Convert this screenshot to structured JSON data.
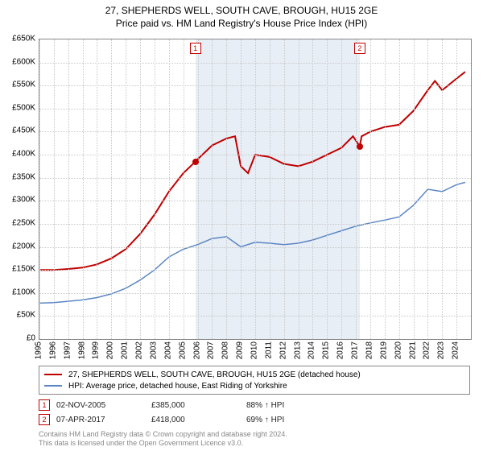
{
  "title": {
    "line1": "27, SHEPHERDS WELL, SOUTH CAVE, BROUGH, HU15 2GE",
    "line2": "Price paid vs. HM Land Registry's House Price Index (HPI)"
  },
  "chart": {
    "background_color": "#ffffff",
    "grid_color": "#c8c8c8",
    "border_color": "#888888",
    "x_years": [
      1995,
      1996,
      1997,
      1998,
      1999,
      2000,
      2001,
      2002,
      2003,
      2004,
      2005,
      2006,
      2007,
      2008,
      2009,
      2010,
      2011,
      2012,
      2013,
      2014,
      2015,
      2016,
      2017,
      2018,
      2019,
      2020,
      2021,
      2022,
      2023,
      2024
    ],
    "x_min": 1995,
    "x_max": 2025,
    "y_min": 0,
    "y_max": 650000,
    "y_step": 50000,
    "y_prefix": "£",
    "y_suffix": "K",
    "shade_start": 2005.84,
    "shade_end": 2017.27,
    "shade_color": "#e8eef6",
    "series": [
      {
        "name": "property",
        "color": "#c00000",
        "width": 2,
        "label": "27, SHEPHERDS WELL, SOUTH CAVE, BROUGH, HU15 2GE (detached house)",
        "points": [
          [
            1995,
            150000
          ],
          [
            1996,
            150000
          ],
          [
            1997,
            152000
          ],
          [
            1998,
            155000
          ],
          [
            1999,
            162000
          ],
          [
            2000,
            175000
          ],
          [
            2001,
            195000
          ],
          [
            2002,
            228000
          ],
          [
            2003,
            270000
          ],
          [
            2004,
            320000
          ],
          [
            2005,
            360000
          ],
          [
            2005.84,
            385000
          ],
          [
            2006,
            390000
          ],
          [
            2007,
            420000
          ],
          [
            2008,
            435000
          ],
          [
            2008.6,
            440000
          ],
          [
            2009,
            375000
          ],
          [
            2009.5,
            360000
          ],
          [
            2010,
            400000
          ],
          [
            2011,
            395000
          ],
          [
            2012,
            380000
          ],
          [
            2013,
            375000
          ],
          [
            2014,
            385000
          ],
          [
            2015,
            400000
          ],
          [
            2016,
            415000
          ],
          [
            2016.8,
            440000
          ],
          [
            2017.27,
            418000
          ],
          [
            2017.4,
            440000
          ],
          [
            2018,
            450000
          ],
          [
            2019,
            460000
          ],
          [
            2020,
            465000
          ],
          [
            2021,
            495000
          ],
          [
            2022,
            540000
          ],
          [
            2022.5,
            560000
          ],
          [
            2023,
            540000
          ],
          [
            2024,
            565000
          ],
          [
            2024.6,
            580000
          ]
        ]
      },
      {
        "name": "hpi",
        "color": "#5b86c4",
        "width": 1.5,
        "label": "HPI: Average price, detached house, East Riding of Yorkshire",
        "points": [
          [
            1995,
            78000
          ],
          [
            1996,
            79000
          ],
          [
            1997,
            82000
          ],
          [
            1998,
            85000
          ],
          [
            1999,
            90000
          ],
          [
            2000,
            98000
          ],
          [
            2001,
            110000
          ],
          [
            2002,
            128000
          ],
          [
            2003,
            150000
          ],
          [
            2004,
            178000
          ],
          [
            2005,
            195000
          ],
          [
            2006,
            205000
          ],
          [
            2007,
            218000
          ],
          [
            2008,
            222000
          ],
          [
            2009,
            200000
          ],
          [
            2010,
            210000
          ],
          [
            2011,
            208000
          ],
          [
            2012,
            205000
          ],
          [
            2013,
            208000
          ],
          [
            2014,
            215000
          ],
          [
            2015,
            225000
          ],
          [
            2016,
            235000
          ],
          [
            2017,
            245000
          ],
          [
            2018,
            252000
          ],
          [
            2019,
            258000
          ],
          [
            2020,
            265000
          ],
          [
            2021,
            290000
          ],
          [
            2022,
            325000
          ],
          [
            2023,
            320000
          ],
          [
            2024,
            335000
          ],
          [
            2024.6,
            340000
          ]
        ]
      }
    ],
    "markers": [
      {
        "id": "1",
        "x": 2005.84,
        "y": 385000
      },
      {
        "id": "2",
        "x": 2017.27,
        "y": 418000
      }
    ]
  },
  "legend": {
    "items": [
      {
        "color": "#c00000",
        "text": "27, SHEPHERDS WELL, SOUTH CAVE, BROUGH, HU15 2GE (detached house)"
      },
      {
        "color": "#5b86c4",
        "text": "HPI: Average price, detached house, East Riding of Yorkshire"
      }
    ]
  },
  "sales": [
    {
      "id": "1",
      "date": "02-NOV-2005",
      "price": "£385,000",
      "hpi": "88% ↑ HPI"
    },
    {
      "id": "2",
      "date": "07-APR-2017",
      "price": "£418,000",
      "hpi": "69% ↑ HPI"
    }
  ],
  "footer": {
    "line1": "Contains HM Land Registry data © Crown copyright and database right 2024.",
    "line2": "This data is licensed under the Open Government Licence v3.0."
  }
}
